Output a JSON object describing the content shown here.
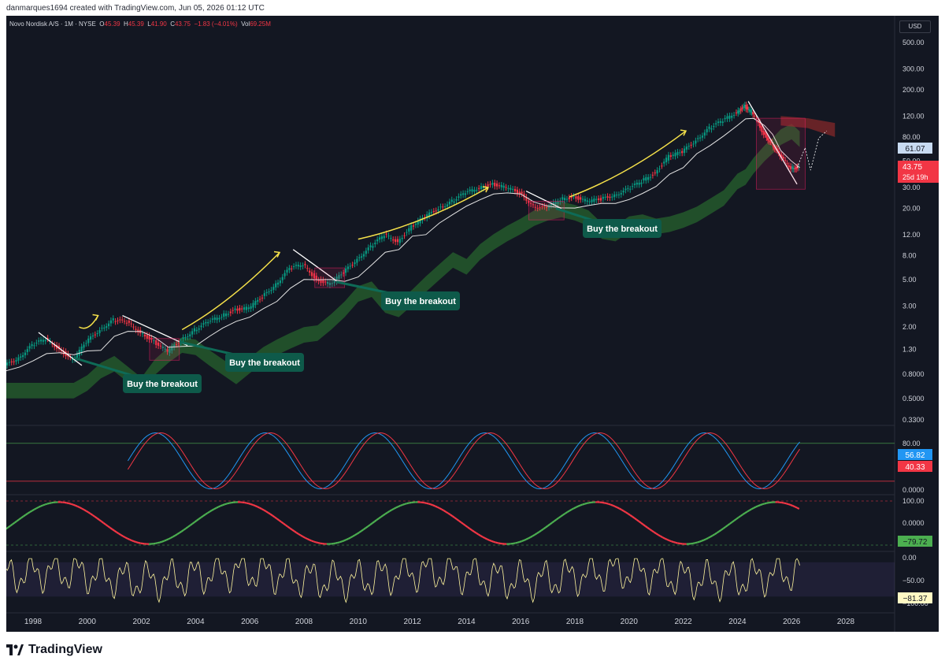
{
  "header": {
    "credit": "danmarques1694 created with TradingView.com, Jun 05, 2026 01:12 UTC"
  },
  "legend": {
    "symbol": "Novo Nordisk A/S · 1M · NYSE",
    "open_label": "O",
    "open": "45.39",
    "high_label": "H",
    "high": "45.39",
    "low_label": "L",
    "low": "41.90",
    "close_label": "C",
    "close": "43.75",
    "change": "−1.83 (−4.01%)",
    "vol_label": "Vol",
    "vol": "69.25M"
  },
  "currency": "USD",
  "footer": {
    "brand": "TradingView"
  },
  "chart_data": {
    "type": "line",
    "title": "",
    "price_scale": "log",
    "x_ticks": [
      "1998",
      "2000",
      "2002",
      "2004",
      "2006",
      "2008",
      "2010",
      "2012",
      "2014",
      "2016",
      "2018",
      "2020",
      "2022",
      "2024",
      "2026",
      "2028"
    ],
    "y_ticks": [
      "500.00",
      "300.00",
      "200.00",
      "120.00",
      "80.00",
      "50.00",
      "30.00",
      "20.00",
      "12.00",
      "8.00",
      "5.00",
      "3.00",
      "2.00",
      "1.30",
      "0.8000",
      "0.5000",
      "0.3300"
    ],
    "series": [
      {
        "x": [
          1997.0,
          1997.5,
          1998.0,
          1998.5,
          1999.0,
          1999.5,
          2000.0,
          2000.5,
          2001.0,
          2001.5,
          2002.0,
          2002.5,
          2003.0,
          2003.5,
          2004.0,
          2004.5,
          2005.0,
          2005.5,
          2006.0,
          2006.5,
          2007.0,
          2007.5,
          2008.0,
          2008.5,
          2009.0,
          2009.5,
          2010.0,
          2010.5,
          2011.0,
          2011.5,
          2012.0,
          2012.5,
          2013.0,
          2013.5,
          2014.0,
          2014.5,
          2015.0,
          2015.5,
          2016.0,
          2016.5,
          2017.0,
          2017.5,
          2018.0,
          2018.5,
          2019.0,
          2019.5,
          2020.0,
          2020.5,
          2021.0,
          2021.5,
          2022.0,
          2022.5,
          2023.0,
          2023.5,
          2024.0,
          2024.3,
          2024.6,
          2025.0,
          2025.3,
          2025.6,
          2026.0,
          2026.3
        ],
        "values": [
          0.95,
          1.1,
          1.4,
          1.6,
          1.3,
          1.05,
          1.5,
          1.9,
          2.3,
          2.2,
          1.8,
          1.5,
          1.25,
          1.55,
          1.9,
          2.2,
          2.5,
          2.8,
          2.9,
          3.6,
          4.6,
          6.2,
          6.8,
          5.0,
          4.6,
          5.8,
          7.5,
          9.5,
          12.0,
          10.5,
          14.0,
          17.0,
          20.0,
          23.0,
          27.0,
          30.0,
          32.0,
          30.0,
          27.0,
          21.0,
          20.0,
          24.0,
          25.0,
          23.0,
          24.0,
          26.0,
          29.0,
          34.0,
          40.0,
          55.0,
          60.0,
          75.0,
          95.0,
          110.0,
          130.0,
          145.0,
          125.0,
          85.0,
          70.0,
          55.0,
          44.0,
          43.75
        ]
      }
    ],
    "annotations": [
      "Buy the breakout",
      "Buy the breakout",
      "Buy the breakout",
      "Buy the breakout"
    ],
    "price_badges": [
      "61.07",
      "43.75",
      "25d 19h"
    ],
    "stoch": {
      "y_ticks": [
        "80.00",
        "0.0000"
      ],
      "badges": [
        "56.82",
        "40.33"
      ]
    },
    "osc2": {
      "y_ticks": [
        "100.00",
        "0.0000"
      ],
      "badge": "−79.72"
    },
    "osc3": {
      "y_ticks": [
        "0.00",
        "−50.00",
        "−100.00"
      ],
      "badge": "−81.37"
    },
    "colors": {
      "up": "#089981",
      "down": "#f23645",
      "cloud_up": "#2e7d32",
      "cloud_down": "#8b2a2a",
      "arrow": "#f5e14a"
    }
  }
}
